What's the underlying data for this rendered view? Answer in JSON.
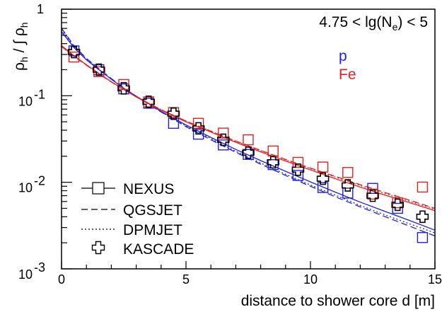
{
  "chart_data": {
    "type": "scatter",
    "title": "",
    "selection_label": "4.75 < lg(N_e) < 5",
    "selection": {
      "prefix": "4.75 < lg(N",
      "sub": "e",
      "suffix": ") < 5"
    },
    "xlabel": "distance to shower core d [m]",
    "ylabel": {
      "main": "ρ",
      "sub": "h",
      "mid": " / ∫ ρ",
      "sub2": "h"
    },
    "xlim": [
      0,
      15
    ],
    "ylim": [
      0.001,
      1
    ],
    "yscale": "log",
    "x_ticks": [
      "0",
      "5",
      "10",
      "15"
    ],
    "y_ticks": [
      {
        "base": "1",
        "exp": ""
      },
      {
        "base": "10",
        "exp": "-1"
      },
      {
        "base": "10",
        "exp": "-2"
      },
      {
        "base": "10",
        "exp": "-3"
      }
    ],
    "primaries": [
      {
        "label": "p",
        "color": "#1f1fe6"
      },
      {
        "label": "Fe",
        "color": "#e61f1f"
      }
    ],
    "legend": {
      "placement": "bottom-left",
      "entries": [
        "NEXUS",
        "QGSJET",
        "DPMJET",
        "KASCADE"
      ]
    },
    "x": [
      0.5,
      1.5,
      2.5,
      3.5,
      4.5,
      5.5,
      6.5,
      7.5,
      8.5,
      9.5,
      10.5,
      11.5,
      12.5,
      13.5,
      14.5
    ],
    "series": [
      {
        "name": "p",
        "model": "NEXUS",
        "marker": "open-square",
        "color": "#1f1fe6",
        "values": [
          0.33,
          0.2,
          0.12,
          0.082,
          0.048,
          0.036,
          0.027,
          0.021,
          0.016,
          0.012,
          0.0087,
          0.0075,
          0.0085,
          0.005,
          0.0023
        ]
      },
      {
        "name": "Fe",
        "model": "NEXUS",
        "marker": "open-square",
        "color": "#e61f1f",
        "values": [
          0.28,
          0.19,
          0.135,
          0.085,
          0.064,
          0.048,
          0.037,
          0.031,
          0.023,
          0.017,
          0.015,
          0.013,
          0.0073,
          0.0058,
          0.0088
        ]
      },
      {
        "name": "KASCADE",
        "model": "KASCADE",
        "marker": "open-cross",
        "color": "#000000",
        "values": [
          0.32,
          0.2,
          0.122,
          0.085,
          0.062,
          0.042,
          0.031,
          0.022,
          0.017,
          0.014,
          0.011,
          0.0092,
          0.007,
          0.0055,
          0.004
        ]
      }
    ],
    "fits": [
      {
        "name": "p",
        "model": "NEXUS",
        "style": "solid",
        "color": "#1f1fe6",
        "x": [
          0,
          0.5,
          1,
          1.5,
          2,
          2.5,
          3,
          3.5,
          4,
          5,
          6,
          7,
          8,
          9,
          10,
          11,
          12,
          13,
          14,
          15
        ],
        "values": [
          0.55,
          0.36,
          0.26,
          0.2,
          0.155,
          0.122,
          0.099,
          0.081,
          0.066,
          0.046,
          0.033,
          0.024,
          0.0178,
          0.0134,
          0.0101,
          0.0077,
          0.0059,
          0.0046,
          0.0036,
          0.0028
        ]
      },
      {
        "name": "p",
        "model": "QGSJET",
        "style": "dashed",
        "color": "#1f1fe6",
        "x": [
          0,
          0.5,
          1,
          1.5,
          2,
          2.5,
          3,
          3.5,
          4,
          5,
          6,
          7,
          8,
          9,
          10,
          11,
          12,
          13,
          14,
          15
        ],
        "values": [
          0.6,
          0.38,
          0.27,
          0.205,
          0.158,
          0.123,
          0.099,
          0.08,
          0.065,
          0.044,
          0.031,
          0.0222,
          0.0162,
          0.012,
          0.009,
          0.0068,
          0.0052,
          0.004,
          0.0031,
          0.0024
        ]
      },
      {
        "name": "p",
        "model": "DPMJET",
        "style": "dotted",
        "color": "#1f1fe6",
        "x": [
          0,
          0.5,
          1,
          1.5,
          2,
          2.5,
          3,
          3.5,
          4,
          5,
          6,
          7,
          8,
          9,
          10,
          11,
          12,
          13,
          14,
          15
        ],
        "values": [
          0.58,
          0.37,
          0.265,
          0.202,
          0.156,
          0.122,
          0.098,
          0.08,
          0.065,
          0.045,
          0.032,
          0.0228,
          0.0167,
          0.0124,
          0.0093,
          0.0071,
          0.0054,
          0.0042,
          0.0033,
          0.0026
        ]
      },
      {
        "name": "Fe",
        "model": "NEXUS",
        "style": "solid",
        "color": "#e61f1f",
        "x": [
          0,
          0.5,
          1,
          1.5,
          2,
          2.5,
          3,
          3.5,
          4,
          5,
          6,
          7,
          8,
          9,
          10,
          11,
          12,
          13,
          14,
          15
        ],
        "values": [
          0.38,
          0.29,
          0.228,
          0.181,
          0.145,
          0.118,
          0.097,
          0.081,
          0.068,
          0.05,
          0.038,
          0.029,
          0.0225,
          0.0176,
          0.0139,
          0.011,
          0.0088,
          0.0071,
          0.0058,
          0.0047
        ]
      },
      {
        "name": "Fe",
        "model": "QGSJET",
        "style": "dashed",
        "color": "#e61f1f",
        "x": [
          0,
          0.5,
          1,
          1.5,
          2,
          2.5,
          3,
          3.5,
          4,
          5,
          6,
          7,
          8,
          9,
          10,
          11,
          12,
          13,
          14,
          15
        ],
        "values": [
          0.37,
          0.285,
          0.225,
          0.179,
          0.144,
          0.118,
          0.098,
          0.082,
          0.069,
          0.051,
          0.039,
          0.03,
          0.0234,
          0.0184,
          0.0146,
          0.0117,
          0.0094,
          0.0076,
          0.0062,
          0.005
        ]
      },
      {
        "name": "Fe",
        "model": "DPMJET",
        "style": "dotted",
        "color": "#e61f1f",
        "x": [
          0,
          0.5,
          1,
          1.5,
          2,
          2.5,
          3,
          3.5,
          4,
          5,
          6,
          7,
          8,
          9,
          10,
          11,
          12,
          13,
          14,
          15
        ],
        "values": [
          0.375,
          0.288,
          0.226,
          0.18,
          0.145,
          0.118,
          0.098,
          0.082,
          0.069,
          0.051,
          0.039,
          0.0298,
          0.0232,
          0.0182,
          0.0144,
          0.0115,
          0.0092,
          0.0074,
          0.006,
          0.0049
        ]
      }
    ]
  }
}
